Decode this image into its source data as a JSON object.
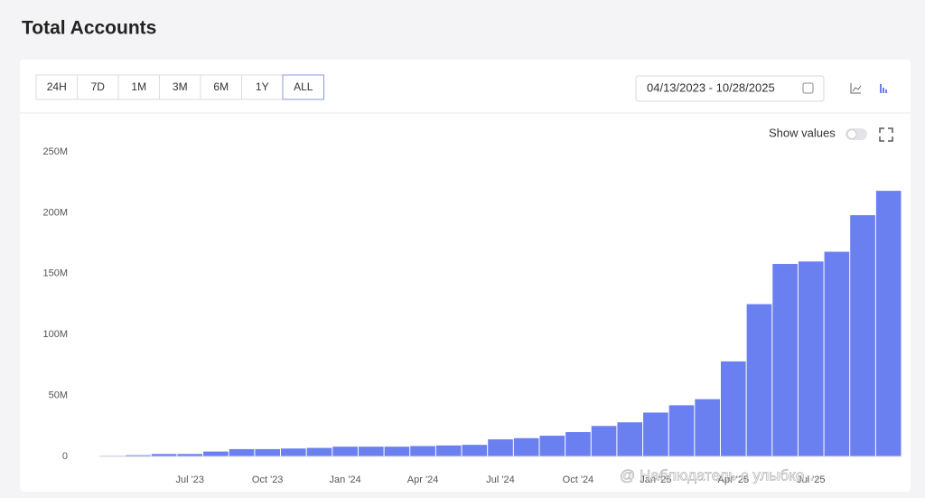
{
  "header": {
    "title": "Total Accounts"
  },
  "toolbar": {
    "range_buttons": [
      "24H",
      "7D",
      "1M",
      "3M",
      "6M",
      "1Y",
      "ALL"
    ],
    "date_range": "04/13/2023 - 10/28/2025",
    "show_values": "Show values"
  },
  "chart_data": {
    "type": "bar",
    "categories": [
      null,
      null,
      null,
      "Jul '23",
      null,
      null,
      "Oct '23",
      null,
      null,
      "Jan '24",
      null,
      null,
      "Apr '24",
      null,
      null,
      "Jul '24",
      null,
      null,
      "Oct '24",
      null,
      null,
      "Jan '25",
      null,
      null,
      "Apr '25",
      null,
      null,
      "Jul '25",
      null,
      null,
      null
    ],
    "values": [
      500000,
      1000000,
      2000000,
      2000000,
      4000000,
      6000000,
      6000000,
      6500000,
      7000000,
      8000000,
      8000000,
      8000000,
      8500000,
      9000000,
      9500000,
      14000000,
      15000000,
      17000000,
      20000000,
      25000000,
      28000000,
      36000000,
      42000000,
      47000000,
      78000000,
      125000000,
      158000000,
      160000000,
      168000000,
      198000000,
      218000000
    ],
    "color": "#6a80f0",
    "ylim": [
      0,
      250000000
    ],
    "yticks": [
      0,
      {
        "value": 50000000,
        "label": "50M"
      },
      {
        "value": 100000000,
        "label": "100M"
      },
      {
        "value": 150000000,
        "label": "150M"
      },
      {
        "value": 200000000,
        "label": "200M"
      },
      {
        "value": 250000000,
        "label": "250M"
      }
    ],
    "grid": false
  },
  "watermark": "@ Наблюдатель с улыбко…"
}
